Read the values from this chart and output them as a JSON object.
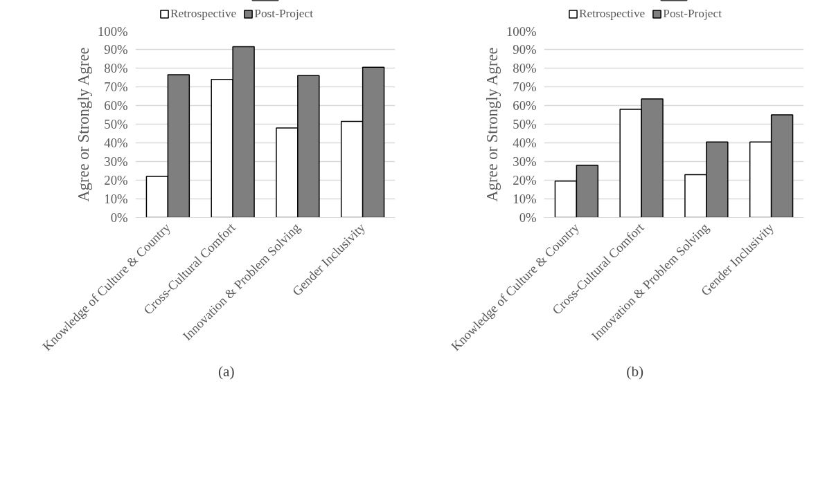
{
  "chart_data": [
    {
      "type": "bar",
      "ylabel": "Agree or Strongly Agree",
      "categories": [
        "Knowledge of Culture & Country",
        "Cross-Cultural Comfort",
        "Innovation & Problem Solving",
        "Gender Inclusivity"
      ],
      "series": [
        {
          "name": "Retrospective",
          "color": "#ffffff",
          "values": [
            22,
            74,
            48,
            51.5
          ]
        },
        {
          "name": "Post-Project",
          "color": "#7f7f7f",
          "values": [
            76.5,
            91.5,
            76,
            80.5
          ]
        }
      ],
      "ylim": [
        0,
        100
      ],
      "yticks": [
        {
          "value": 0,
          "label": "0%"
        },
        {
          "value": 10,
          "label": "10%"
        },
        {
          "value": 20,
          "label": "20%"
        },
        {
          "value": 30,
          "label": "30%"
        },
        {
          "value": 40,
          "label": "40%"
        },
        {
          "value": 50,
          "label": "50%"
        },
        {
          "value": 60,
          "label": "60%"
        },
        {
          "value": 70,
          "label": "70%"
        },
        {
          "value": 80,
          "label": "80%"
        },
        {
          "value": 90,
          "label": "90%"
        },
        {
          "value": 100,
          "label": "100%"
        }
      ],
      "grid": "y",
      "legend": "top",
      "annotations": [
        "(a)"
      ]
    },
    {
      "type": "bar",
      "ylabel": "Agree or Strongly Agree",
      "categories": [
        "Knowledge of Culture & Country",
        "Cross-Cultural Comfort",
        "Innovation & Problem Solving",
        "Gender Inclusivity"
      ],
      "series": [
        {
          "name": "Retrospective",
          "color": "#ffffff",
          "values": [
            19.5,
            58,
            23,
            40.5
          ]
        },
        {
          "name": "Post-Project",
          "color": "#7f7f7f",
          "values": [
            28,
            63.5,
            40.5,
            55
          ]
        }
      ],
      "ylim": [
        0,
        100
      ],
      "yticks": [
        {
          "value": 0,
          "label": "0%"
        },
        {
          "value": 10,
          "label": "10%"
        },
        {
          "value": 20,
          "label": "20%"
        },
        {
          "value": 30,
          "label": "30%"
        },
        {
          "value": 40,
          "label": "40%"
        },
        {
          "value": 50,
          "label": "50%"
        },
        {
          "value": 60,
          "label": "60%"
        },
        {
          "value": 70,
          "label": "70%"
        },
        {
          "value": 80,
          "label": "80%"
        },
        {
          "value": 90,
          "label": "90%"
        },
        {
          "value": 100,
          "label": "100%"
        }
      ],
      "grid": "y",
      "legend": "top",
      "annotations": [
        "(b)"
      ]
    }
  ]
}
